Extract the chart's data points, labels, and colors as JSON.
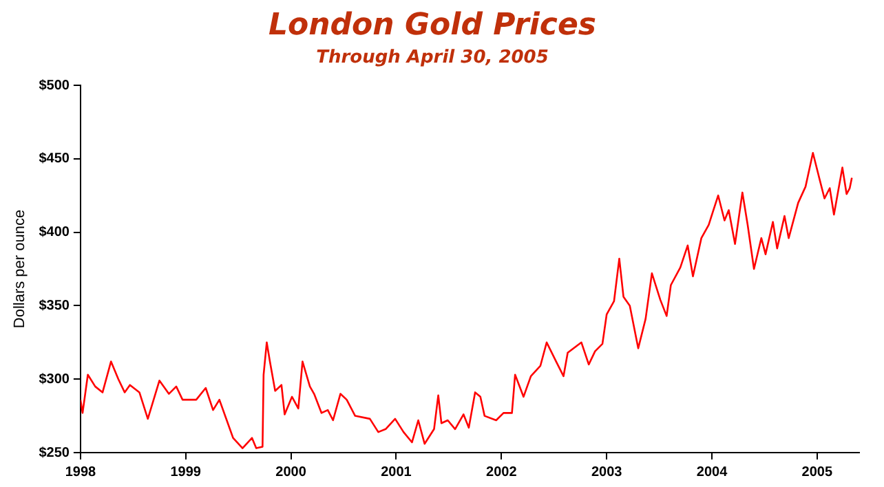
{
  "chart_data": {
    "type": "line",
    "title": "London Gold Prices",
    "subtitle": "Through April 30, 2005",
    "ylabel": "Dollars per ounce",
    "xlim": [
      1998,
      2005.4
    ],
    "xticks": [
      1998,
      1999,
      2000,
      2001,
      2002,
      2003,
      2004,
      2005
    ],
    "ylim": [
      250,
      500
    ],
    "yticks": [
      {
        "value": 250,
        "label": "$250"
      },
      {
        "value": 300,
        "label": "$300"
      },
      {
        "value": 350,
        "label": "$350"
      },
      {
        "value": 400,
        "label": "$400"
      },
      {
        "value": 450,
        "label": "$450"
      },
      {
        "value": 500,
        "label": "$500"
      }
    ],
    "grid": false,
    "legend": false,
    "marker": "none",
    "line_style": "solid",
    "series": [
      {
        "color": "#ff0000",
        "x": [
          1998.0,
          1998.02,
          1998.07,
          1998.14,
          1998.21,
          1998.29,
          1998.36,
          1998.42,
          1998.47,
          1998.56,
          1998.64,
          1998.75,
          1998.84,
          1998.91,
          1998.97,
          1999.1,
          1999.19,
          1999.26,
          1999.32,
          1999.39,
          1999.45,
          1999.54,
          1999.63,
          1999.67,
          1999.73,
          1999.74,
          1999.77,
          1999.8,
          1999.85,
          1999.91,
          1999.94,
          2000.01,
          2000.07,
          2000.11,
          2000.18,
          2000.22,
          2000.29,
          2000.35,
          2000.4,
          2000.47,
          2000.53,
          2000.61,
          2000.75,
          2000.83,
          2000.9,
          2000.99,
          2001.07,
          2001.15,
          2001.21,
          2001.27,
          2001.36,
          2001.4,
          2001.43,
          2001.49,
          2001.56,
          2001.64,
          2001.69,
          2001.75,
          2001.8,
          2001.84,
          2001.95,
          2002.02,
          2002.1,
          2002.13,
          2002.21,
          2002.28,
          2002.37,
          2002.43,
          2002.52,
          2002.59,
          2002.63,
          2002.76,
          2002.83,
          2002.89,
          2002.96,
          2003.0,
          2003.07,
          2003.12,
          2003.16,
          2003.22,
          2003.3,
          2003.37,
          2003.43,
          2003.51,
          2003.57,
          2003.61,
          2003.7,
          2003.77,
          2003.82,
          2003.9,
          2003.97,
          2004.01,
          2004.06,
          2004.12,
          2004.16,
          2004.22,
          2004.29,
          2004.34,
          2004.4,
          2004.47,
          2004.51,
          2004.58,
          2004.62,
          2004.69,
          2004.73,
          2004.82,
          2004.89,
          2004.96,
          2005.02,
          2005.07,
          2005.12,
          2005.16,
          2005.24,
          2005.28,
          2005.31,
          2005.33
        ],
        "values": [
          286,
          277,
          303,
          295,
          291,
          312,
          300,
          291,
          296,
          291,
          273,
          299,
          290,
          295,
          286,
          286,
          294,
          279,
          286,
          272,
          260,
          253,
          260,
          253,
          254,
          303,
          325,
          312,
          292,
          296,
          276,
          288,
          280,
          312,
          295,
          290,
          277,
          279,
          272,
          290,
          286,
          275,
          273,
          264,
          266,
          273,
          264,
          257,
          272,
          256,
          266,
          289,
          270,
          272,
          266,
          276,
          267,
          291,
          288,
          275,
          272,
          277,
          277,
          303,
          288,
          302,
          309,
          325,
          312,
          302,
          318,
          325,
          310,
          319,
          324,
          344,
          353,
          382,
          356,
          350,
          321,
          341,
          372,
          354,
          343,
          364,
          376,
          391,
          370,
          396,
          405,
          414,
          425,
          408,
          415,
          392,
          427,
          405,
          375,
          396,
          385,
          407,
          389,
          411,
          396,
          420,
          431,
          454,
          437,
          423,
          430,
          412,
          444,
          426,
          430,
          437
        ]
      }
    ]
  }
}
